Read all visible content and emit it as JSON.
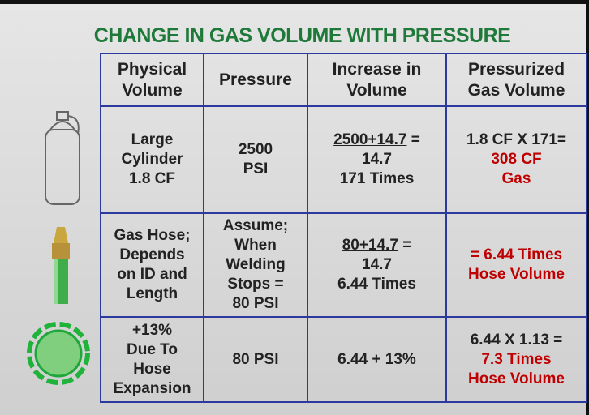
{
  "title": "CHANGE IN GAS VOLUME WITH PRESSURE",
  "table": {
    "header": [
      [
        "Physical",
        "Volume"
      ],
      [
        "Pressure"
      ],
      [
        "Increase in",
        "Volume"
      ],
      [
        "Pressurized",
        "Gas Volume"
      ]
    ],
    "rows": [
      [
        [
          "Large",
          "Cylinder",
          "1.8 CF"
        ],
        [
          "2500",
          "PSI"
        ],
        [
          {
            "text": "2500+14.7",
            "underline": true,
            "after": "="
          },
          "14.7",
          "171 Times"
        ],
        [
          "1.8 CF X 171=",
          {
            "text": "308 CF",
            "color": "#c00000"
          },
          {
            "text": "Gas",
            "color": "#c00000"
          }
        ]
      ],
      [
        [
          "Gas Hose;",
          "Depends",
          "on ID and",
          "Length"
        ],
        [
          "Assume;",
          "When",
          "Welding",
          "Stops =",
          "80 PSI"
        ],
        [
          {
            "text": "80+14.7",
            "underline": true,
            "after": "="
          },
          "14.7",
          "6.44 Times"
        ],
        [
          {
            "text": "= 6.44 Times",
            "color": "#c00000"
          },
          {
            "text": "Hose Volume",
            "color": "#c00000"
          }
        ]
      ],
      [
        [
          "+13%",
          "Due To",
          "Hose",
          "Expansion"
        ],
        [
          "80 PSI"
        ],
        [
          "6.44 + 13%"
        ],
        [
          "6.44 X 1.13 =",
          {
            "text": "7.3 Times",
            "color": "#c00000"
          },
          {
            "text": "Hose Volume",
            "color": "#c00000"
          }
        ]
      ]
    ]
  }
}
